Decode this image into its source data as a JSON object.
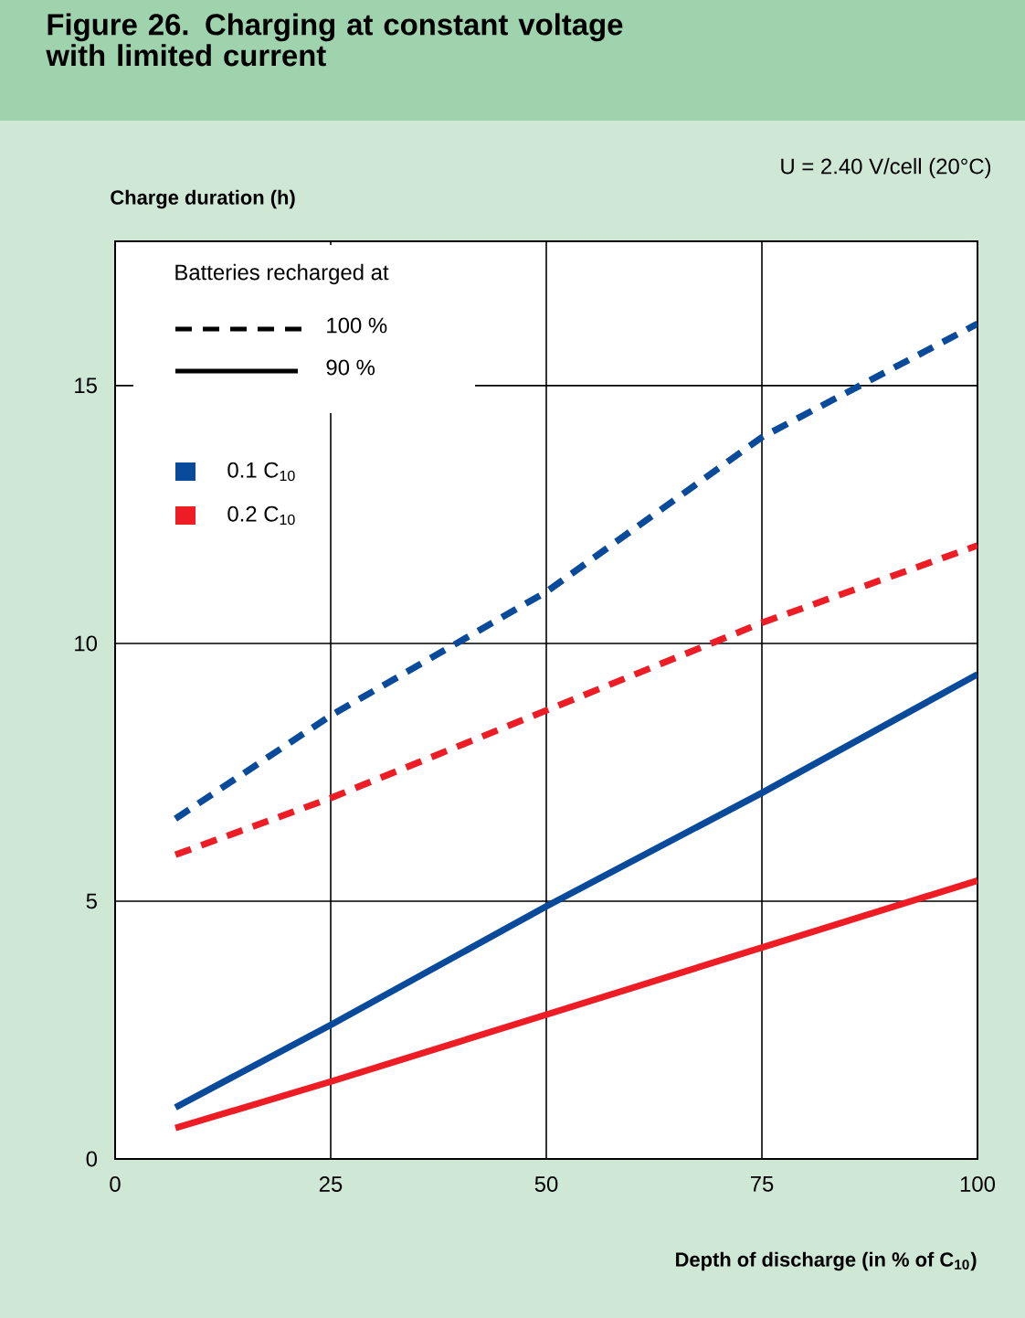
{
  "chart_data": {
    "type": "line",
    "title": "Figure 26. Charging at constant voltage with limited current",
    "subtitle": "U = 2.40 V/cell (20°C)",
    "ylabel": "Charge duration (h)",
    "xlabel": "Depth of discharge (in % of C$_{10}$)",
    "legend_title": "Batteries recharged at",
    "annotations": [
      "100 %",
      "90 %",
      "0.1 C$_{10}$",
      "0.2 C$_{10}$"
    ],
    "x": [
      7,
      25,
      50,
      75,
      100
    ],
    "series": [
      {
        "color": "#0a4a9b",
        "line_style": "dashed",
        "values": [
          6.6,
          8.6,
          11.0,
          14.0,
          16.2
        ]
      },
      {
        "color": "#ee1c25",
        "line_style": "dashed",
        "values": [
          5.9,
          7.0,
          8.7,
          10.4,
          11.9
        ]
      },
      {
        "color": "#0a4a9b",
        "line_style": "solid",
        "values": [
          1.0,
          2.6,
          4.9,
          7.1,
          9.4
        ]
      },
      {
        "color": "#ee1c25",
        "line_style": "solid",
        "values": [
          0.6,
          1.5,
          2.8,
          4.1,
          5.4
        ]
      }
    ],
    "xlim": [
      0,
      100
    ],
    "ylim": [
      0,
      17.8
    ],
    "xticks": [
      0,
      25,
      50,
      75,
      100
    ],
    "yticks": [
      0,
      5,
      10,
      15
    ],
    "grid": true,
    "marker": "none"
  }
}
